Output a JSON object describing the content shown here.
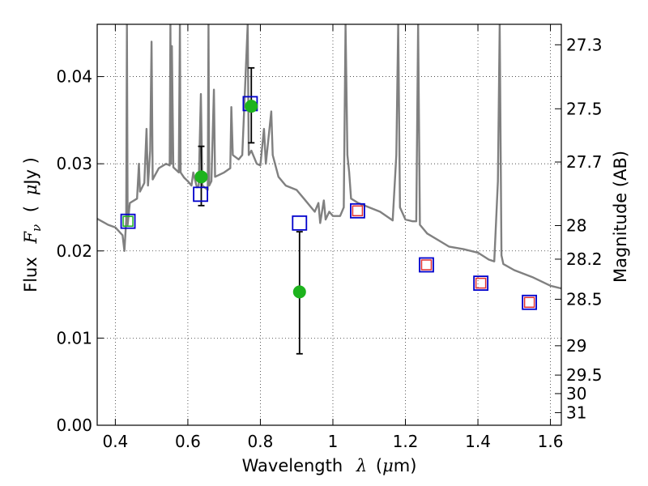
{
  "chart_data": {
    "type": "scatter",
    "title": "",
    "xlabel": "Wavelength λ (μm)",
    "xlabel_parts": {
      "prefix": "Wavelength",
      "symbol": "λ",
      "open": "(",
      "unit_mu": "μ",
      "unit_rest": "m)"
    },
    "ylabel": "Flux Fν ( μJy )",
    "ylabel_parts": {
      "prefix": "Flux",
      "symbol": "F",
      "sub": "ν",
      "open": "(",
      "unit_mu": "μ",
      "unit_rest": "Jy )"
    },
    "y2label": "Magnitude (AB)",
    "xlim": [
      0.35,
      1.63
    ],
    "ylim": [
      0.0,
      0.046
    ],
    "grid": true,
    "grid_style": "dotted",
    "xticks": [
      {
        "value": 0.4,
        "label": "0.4"
      },
      {
        "value": 0.6,
        "label": "0.6"
      },
      {
        "value": 0.8,
        "label": "0.8"
      },
      {
        "value": 1.0,
        "label": "1"
      },
      {
        "value": 1.2,
        "label": "1.2"
      },
      {
        "value": 1.4,
        "label": "1.4"
      },
      {
        "value": 1.6,
        "label": "1.6"
      }
    ],
    "yticks": [
      {
        "value": 0.0,
        "label": "0.00"
      },
      {
        "value": 0.01,
        "label": "0.01"
      },
      {
        "value": 0.02,
        "label": "0.02"
      },
      {
        "value": 0.03,
        "label": "0.03"
      },
      {
        "value": 0.04,
        "label": "0.04"
      }
    ],
    "y2ticks": [
      {
        "mag": 27.3,
        "label": "27.3"
      },
      {
        "mag": 27.5,
        "label": "27.5"
      },
      {
        "mag": 27.7,
        "label": "27.7"
      },
      {
        "mag": 28.0,
        "label": "28"
      },
      {
        "mag": 28.2,
        "label": "28.2"
      },
      {
        "mag": 28.5,
        "label": "28.5"
      },
      {
        "mag": 29.0,
        "label": "29"
      },
      {
        "mag": 29.5,
        "label": "29.5"
      },
      {
        "mag": 30.0,
        "label": "30"
      },
      {
        "mag": 31.0,
        "label": "31"
      }
    ],
    "colors": {
      "template": "#808080",
      "model_box": "#0000cc",
      "observed": "#1db31d",
      "inner_red": "#e03030",
      "inner_green": "#1db31d",
      "errorbar": "#000000",
      "grid": "#333333"
    },
    "template_spectrum": {
      "points": [
        [
          0.35,
          0.0237
        ],
        [
          0.38,
          0.023
        ],
        [
          0.4,
          0.0227
        ],
        [
          0.42,
          0.0218
        ],
        [
          0.425,
          0.02
        ],
        [
          0.43,
          0.0235
        ],
        [
          0.432,
          0.046
        ],
        [
          0.434,
          0.023
        ],
        [
          0.44,
          0.0255
        ],
        [
          0.46,
          0.026
        ],
        [
          0.465,
          0.03
        ],
        [
          0.468,
          0.0268
        ],
        [
          0.48,
          0.0278
        ],
        [
          0.486,
          0.034
        ],
        [
          0.49,
          0.0275
        ],
        [
          0.496,
          0.0315
        ],
        [
          0.5,
          0.044
        ],
        [
          0.503,
          0.0282
        ],
        [
          0.52,
          0.0295
        ],
        [
          0.54,
          0.03
        ],
        [
          0.55,
          0.0298
        ],
        [
          0.552,
          0.046
        ],
        [
          0.554,
          0.03
        ],
        [
          0.556,
          0.0435
        ],
        [
          0.56,
          0.0296
        ],
        [
          0.575,
          0.029
        ],
        [
          0.578,
          0.046
        ],
        [
          0.58,
          0.029
        ],
        [
          0.59,
          0.0284
        ],
        [
          0.6,
          0.028
        ],
        [
          0.61,
          0.0275
        ],
        [
          0.615,
          0.029
        ],
        [
          0.625,
          0.0273
        ],
        [
          0.63,
          0.0275
        ],
        [
          0.636,
          0.038
        ],
        [
          0.64,
          0.0275
        ],
        [
          0.655,
          0.027
        ],
        [
          0.657,
          0.046
        ],
        [
          0.659,
          0.0275
        ],
        [
          0.665,
          0.028
        ],
        [
          0.672,
          0.0385
        ],
        [
          0.675,
          0.0285
        ],
        [
          0.7,
          0.029
        ],
        [
          0.717,
          0.0295
        ],
        [
          0.72,
          0.0365
        ],
        [
          0.724,
          0.031
        ],
        [
          0.74,
          0.0305
        ],
        [
          0.75,
          0.031
        ],
        [
          0.765,
          0.046
        ],
        [
          0.768,
          0.031
        ],
        [
          0.775,
          0.0315
        ],
        [
          0.79,
          0.03
        ],
        [
          0.8,
          0.0298
        ],
        [
          0.81,
          0.034
        ],
        [
          0.815,
          0.03
        ],
        [
          0.83,
          0.036
        ],
        [
          0.834,
          0.031
        ],
        [
          0.85,
          0.0285
        ],
        [
          0.87,
          0.0275
        ],
        [
          0.9,
          0.027
        ],
        [
          0.92,
          0.026
        ],
        [
          0.95,
          0.0245
        ],
        [
          0.96,
          0.0255
        ],
        [
          0.965,
          0.0232
        ],
        [
          0.975,
          0.0258
        ],
        [
          0.98,
          0.0236
        ],
        [
          0.99,
          0.0245
        ],
        [
          1.0,
          0.024
        ],
        [
          1.02,
          0.024
        ],
        [
          1.03,
          0.025
        ],
        [
          1.035,
          0.046
        ],
        [
          1.04,
          0.031
        ],
        [
          1.045,
          0.029
        ],
        [
          1.05,
          0.026
        ],
        [
          1.07,
          0.0255
        ],
        [
          1.1,
          0.025
        ],
        [
          1.13,
          0.0245
        ],
        [
          1.165,
          0.0235
        ],
        [
          1.175,
          0.031
        ],
        [
          1.18,
          0.046
        ],
        [
          1.185,
          0.025
        ],
        [
          1.2,
          0.0236
        ],
        [
          1.22,
          0.0234
        ],
        [
          1.23,
          0.0234
        ],
        [
          1.235,
          0.046
        ],
        [
          1.24,
          0.023
        ],
        [
          1.25,
          0.0225
        ],
        [
          1.26,
          0.022
        ],
        [
          1.3,
          0.021
        ],
        [
          1.32,
          0.0205
        ],
        [
          1.36,
          0.0202
        ],
        [
          1.4,
          0.0198
        ],
        [
          1.43,
          0.019
        ],
        [
          1.445,
          0.0188
        ],
        [
          1.455,
          0.028
        ],
        [
          1.46,
          0.046
        ],
        [
          1.465,
          0.0195
        ],
        [
          1.47,
          0.0185
        ],
        [
          1.5,
          0.0178
        ],
        [
          1.55,
          0.017
        ],
        [
          1.6,
          0.016
        ],
        [
          1.63,
          0.0157
        ]
      ]
    },
    "model_points": [
      {
        "x": 0.435,
        "y": 0.0234,
        "inner": "green"
      },
      {
        "x": 0.635,
        "y": 0.0265,
        "inner": "none"
      },
      {
        "x": 0.772,
        "y": 0.0369,
        "inner": "none"
      },
      {
        "x": 0.908,
        "y": 0.0232,
        "inner": "none"
      },
      {
        "x": 1.068,
        "y": 0.0246,
        "inner": "red"
      },
      {
        "x": 1.258,
        "y": 0.0184,
        "inner": "red"
      },
      {
        "x": 1.408,
        "y": 0.0163,
        "inner": "red"
      },
      {
        "x": 1.542,
        "y": 0.0141,
        "inner": "red"
      }
    ],
    "observed_points": [
      {
        "x": 0.637,
        "y": 0.0285,
        "yerr_low": 0.0252,
        "yerr_high": 0.032
      },
      {
        "x": 0.775,
        "y": 0.0366,
        "yerr_low": 0.0324,
        "yerr_high": 0.041
      },
      {
        "x": 0.908,
        "y": 0.0153,
        "yerr_low": 0.0082,
        "yerr_high": 0.0222
      }
    ]
  }
}
